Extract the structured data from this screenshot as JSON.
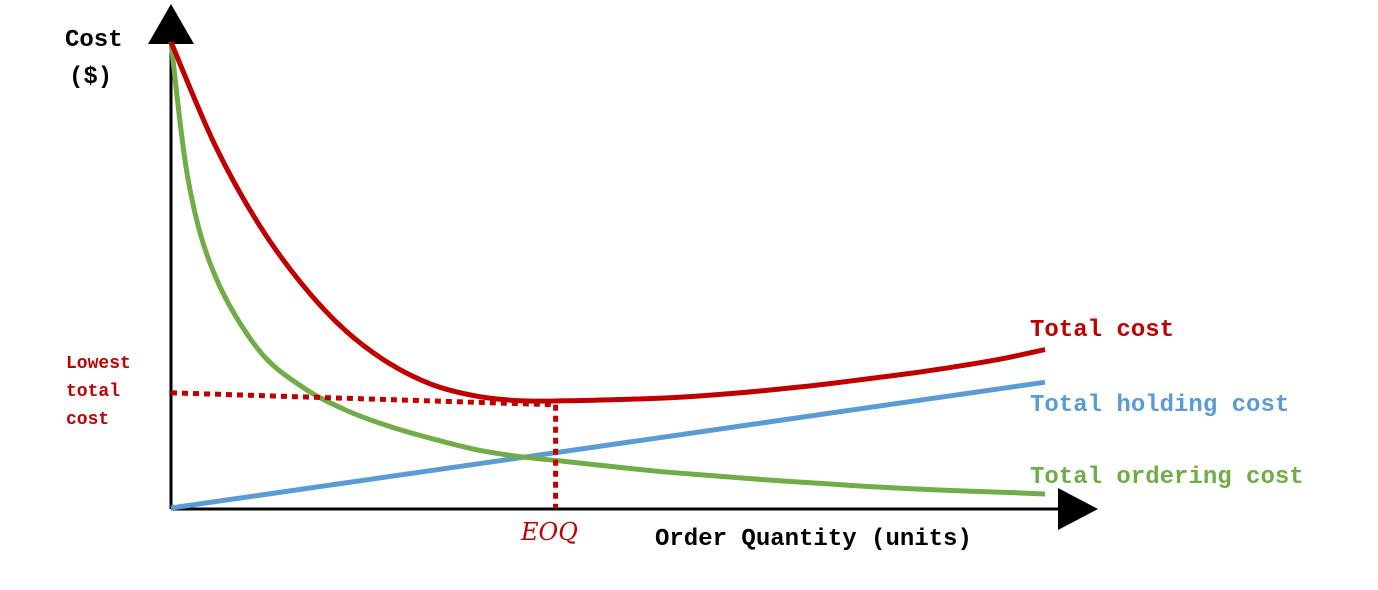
{
  "chart_data": {
    "type": "line",
    "title": "",
    "xlabel": "Order Quantity (units)",
    "ylabel": "Cost ($)",
    "ylabel_lines": [
      "Cost",
      "($)"
    ],
    "xlim": [
      0,
      1
    ],
    "ylim": [
      0,
      1
    ],
    "grid": false,
    "legend": "labels at right end of each curve",
    "series": [
      {
        "name": "Total cost",
        "color": "#C00000",
        "x": [
          0,
          0.05,
          0.1,
          0.15,
          0.2,
          0.25,
          0.3,
          0.35,
          0.4,
          0.45,
          0.5,
          0.55,
          0.6,
          0.65,
          0.7,
          0.75,
          0.8,
          0.85,
          0.9,
          0.95,
          1.0
        ],
        "y": [
          1.0,
          0.78,
          0.61,
          0.48,
          0.38,
          0.31,
          0.264,
          0.24,
          0.23,
          0.23,
          0.232,
          0.235,
          0.24,
          0.247,
          0.256,
          0.266,
          0.278,
          0.29,
          0.304,
          0.32,
          0.34
        ]
      },
      {
        "name": "Total holding cost",
        "color": "#5B9BD5",
        "x": [
          0,
          1.0
        ],
        "y": [
          0,
          0.27
        ]
      },
      {
        "name": "Total ordering cost",
        "color": "#70AD47",
        "x": [
          0,
          0.02,
          0.05,
          0.1,
          0.15,
          0.2,
          0.25,
          0.3,
          0.35,
          0.4,
          0.45,
          0.5,
          0.55,
          0.6,
          0.65,
          0.7,
          0.75,
          0.8,
          0.85,
          0.9,
          0.95,
          1.0
        ],
        "y": [
          1.0,
          0.7,
          0.5,
          0.34,
          0.26,
          0.21,
          0.175,
          0.148,
          0.125,
          0.11,
          0.1,
          0.09,
          0.08,
          0.072,
          0.065,
          0.058,
          0.052,
          0.046,
          0.041,
          0.037,
          0.034,
          0.03
        ]
      }
    ],
    "annotations": [
      {
        "text": "Lowest total cost",
        "lines": [
          "Lowest",
          "total",
          "cost"
        ],
        "color": "#C00000",
        "y": 0.23
      },
      {
        "text": "EOQ",
        "color": "#C00000",
        "x": 0.44
      }
    ]
  }
}
